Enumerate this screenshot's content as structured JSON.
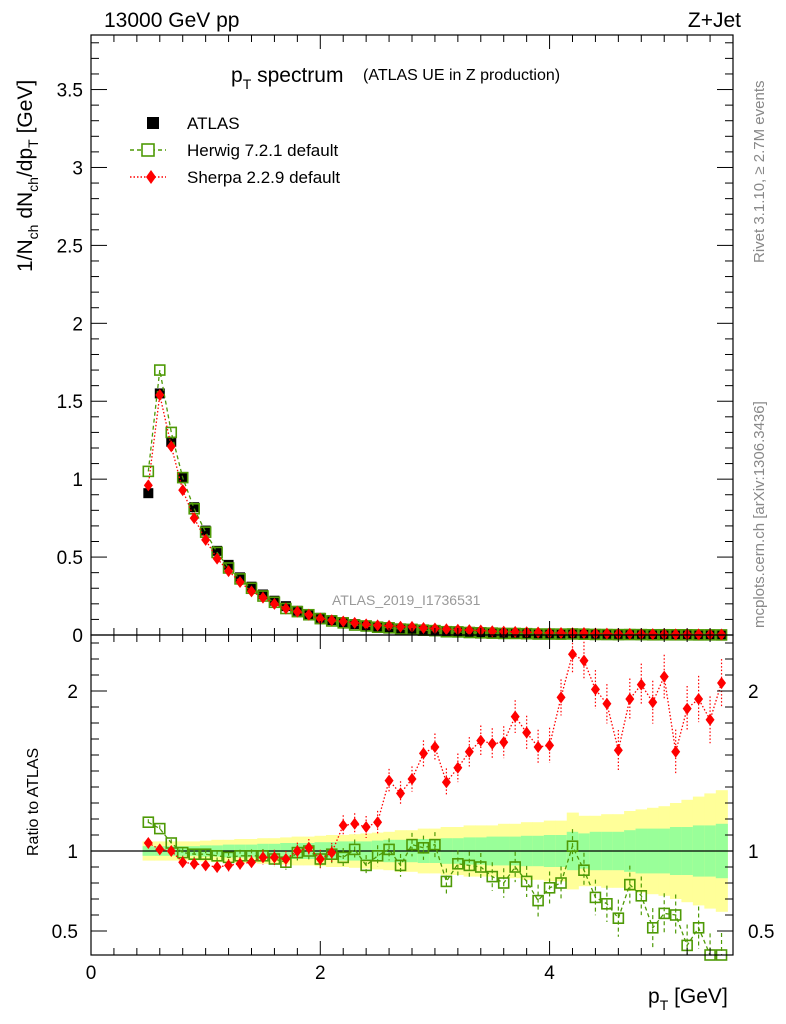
{
  "header": {
    "left": "13000 GeV pp",
    "right": "Z+Jet"
  },
  "title": {
    "main": "p",
    "main_sub": "T",
    "main_rest": " spectrum",
    "paren": "(ATLAS UE in Z production)"
  },
  "side_labels": {
    "rivet": "Rivet 3.1.10, ≥ 2.7M events",
    "mcplots": "mcplots.cern.ch [arXiv:1306.3436]"
  },
  "watermark": "ATLAS_2019_I1736531",
  "axes": {
    "ylabel_upper": "1/N_ch dN_ch/dp_T [GeV]",
    "ylabel_lower": "Ratio to ATLAS",
    "xlabel": "p_T [GeV]"
  },
  "legend": [
    {
      "label": "ATLAS",
      "color": "#000000",
      "marker": "filled-square"
    },
    {
      "label": "Herwig 7.2.1 default",
      "color": "#4e9a06",
      "marker": "open-square",
      "line": "dashed"
    },
    {
      "label": "Sherpa 2.2.9 default",
      "color": "#ff0000",
      "marker": "filled-diamond",
      "line": "dotted"
    }
  ],
  "colors": {
    "atlas": "#000000",
    "herwig": "#4e9a06",
    "sherpa": "#ff0000",
    "band_inner": "#99ff99",
    "band_outer": "#ffff99"
  },
  "chart_data": [
    {
      "type": "scatter",
      "panel": "main",
      "xlim": [
        0,
        5.6
      ],
      "ylim": [
        0,
        3.85
      ],
      "xticks": [
        0,
        2,
        4
      ],
      "yticks": [
        0,
        0.5,
        1,
        1.5,
        2,
        2.5,
        3,
        3.5
      ],
      "ytick_labels": [
        "0",
        "0.5",
        "1",
        "1.5",
        "2",
        "2.5",
        "3",
        "3.5"
      ],
      "x": [
        0.5,
        0.6,
        0.7,
        0.8,
        0.9,
        1.0,
        1.1,
        1.2,
        1.3,
        1.4,
        1.5,
        1.6,
        1.7,
        1.8,
        1.9,
        2.0,
        2.1,
        2.2,
        2.3,
        2.4,
        2.5,
        2.6,
        2.7,
        2.8,
        2.9,
        3.0,
        3.1,
        3.2,
        3.3,
        3.4,
        3.5,
        3.6,
        3.7,
        3.8,
        3.9,
        4.0,
        4.1,
        4.2,
        4.3,
        4.4,
        4.5,
        4.6,
        4.7,
        4.8,
        4.9,
        5.0,
        5.1,
        5.2,
        5.3,
        5.4,
        5.5
      ],
      "series": [
        {
          "name": "ATLAS",
          "values": [
            0.91,
            1.55,
            1.24,
            1.01,
            0.82,
            0.67,
            0.54,
            0.45,
            0.37,
            0.31,
            0.26,
            0.22,
            0.185,
            0.155,
            0.13,
            0.11,
            0.095,
            0.082,
            0.07,
            0.06,
            0.052,
            0.045,
            0.04,
            0.035,
            0.03,
            0.027,
            0.024,
            0.021,
            0.018,
            0.016,
            0.014,
            0.013,
            0.011,
            0.01,
            0.009,
            0.008,
            0.007,
            0.0065,
            0.006,
            0.0052,
            0.0046,
            0.0041,
            0.0037,
            0.0033,
            0.0029,
            0.0026,
            0.0023,
            0.0021,
            0.0019,
            0.0017,
            0.0015
          ]
        },
        {
          "name": "Herwig 7.2.1 default",
          "values": [
            1.05,
            1.7,
            1.3,
            1.01,
            0.81,
            0.66,
            0.53,
            0.43,
            0.36,
            0.3,
            0.25,
            0.21,
            0.17,
            0.15,
            0.13,
            0.105,
            0.09,
            0.078,
            0.064,
            0.058,
            0.05,
            0.046,
            0.038,
            0.036,
            0.031,
            0.028,
            0.021,
            0.02,
            0.016,
            0.014,
            0.012,
            0.01,
            0.0098,
            0.0083,
            0.0062,
            0.0062,
            0.0056,
            0.0067,
            0.0053,
            0.0036,
            0.0031,
            0.0024,
            0.0029,
            0.0024,
            0.0015,
            0.0016,
            0.0014,
            0.0013,
            0.0008,
            0.0009,
            0.0005
          ]
        },
        {
          "name": "Sherpa 2.2.9 default",
          "values": [
            0.96,
            1.54,
            1.21,
            0.93,
            0.75,
            0.61,
            0.49,
            0.41,
            0.34,
            0.28,
            0.24,
            0.2,
            0.17,
            0.15,
            0.13,
            0.105,
            0.095,
            0.087,
            0.078,
            0.068,
            0.062,
            0.059,
            0.053,
            0.052,
            0.045,
            0.042,
            0.037,
            0.034,
            0.031,
            0.029,
            0.024,
            0.022,
            0.02,
            0.018,
            0.016,
            0.014,
            0.013,
            0.012,
            0.013,
            0.01,
            0.0088,
            0.0071,
            0.0076,
            0.0064,
            0.0057,
            0.0052,
            0.0039,
            0.0039,
            0.0037,
            0.0032,
            0.0031
          ]
        }
      ]
    },
    {
      "type": "scatter",
      "panel": "ratio",
      "xlim": [
        0,
        5.6
      ],
      "ylim": [
        0.35,
        2.35
      ],
      "xticks": [
        0,
        2,
        4
      ],
      "xtick_labels": [
        "0",
        "2",
        "4"
      ],
      "yticks": [
        0.5,
        1,
        2
      ],
      "ytick_labels": [
        "0.5",
        "1",
        "2"
      ],
      "x": [
        0.5,
        0.6,
        0.7,
        0.8,
        0.9,
        1.0,
        1.1,
        1.2,
        1.3,
        1.4,
        1.5,
        1.6,
        1.7,
        1.8,
        1.9,
        2.0,
        2.1,
        2.2,
        2.3,
        2.4,
        2.5,
        2.6,
        2.7,
        2.8,
        2.9,
        3.0,
        3.1,
        3.2,
        3.3,
        3.4,
        3.5,
        3.6,
        3.7,
        3.8,
        3.9,
        4.0,
        4.1,
        4.2,
        4.3,
        4.4,
        4.5,
        4.6,
        4.7,
        4.8,
        4.9,
        5.0,
        5.1,
        5.2,
        5.3,
        5.4,
        5.5
      ],
      "band_inner_halfwidth": [
        0.03,
        0.03,
        0.03,
        0.03,
        0.03,
        0.035,
        0.035,
        0.04,
        0.04,
        0.04,
        0.045,
        0.045,
        0.05,
        0.05,
        0.05,
        0.055,
        0.055,
        0.06,
        0.06,
        0.06,
        0.065,
        0.07,
        0.07,
        0.07,
        0.075,
        0.075,
        0.08,
        0.08,
        0.085,
        0.085,
        0.09,
        0.09,
        0.09,
        0.095,
        0.095,
        0.1,
        0.1,
        0.12,
        0.11,
        0.12,
        0.12,
        0.12,
        0.13,
        0.14,
        0.14,
        0.14,
        0.15,
        0.15,
        0.16,
        0.16,
        0.17
      ],
      "band_outer_halfwidth": [
        0.06,
        0.06,
        0.06,
        0.06,
        0.06,
        0.065,
        0.07,
        0.07,
        0.075,
        0.075,
        0.08,
        0.08,
        0.085,
        0.09,
        0.09,
        0.095,
        0.1,
        0.1,
        0.105,
        0.11,
        0.115,
        0.12,
        0.13,
        0.13,
        0.14,
        0.14,
        0.15,
        0.15,
        0.16,
        0.16,
        0.16,
        0.17,
        0.17,
        0.18,
        0.18,
        0.19,
        0.19,
        0.24,
        0.22,
        0.22,
        0.23,
        0.23,
        0.25,
        0.26,
        0.27,
        0.28,
        0.3,
        0.32,
        0.34,
        0.36,
        0.38
      ],
      "series": [
        {
          "name": "Herwig 7.2.1 default",
          "values": [
            1.18,
            1.14,
            1.05,
            0.99,
            0.98,
            0.98,
            0.97,
            0.96,
            0.97,
            0.97,
            0.97,
            0.95,
            0.93,
            0.99,
            1.0,
            0.95,
            0.98,
            0.96,
            1.01,
            0.91,
            0.97,
            1.01,
            0.91,
            1.04,
            1.02,
            1.04,
            0.81,
            0.92,
            0.91,
            0.9,
            0.84,
            0.8,
            0.9,
            0.81,
            0.69,
            0.77,
            0.8,
            1.03,
            0.88,
            0.71,
            0.67,
            0.58,
            0.79,
            0.72,
            0.52,
            0.61,
            0.6,
            0.41,
            0.52,
            0.35,
            0.35
          ]
        },
        {
          "name": "Sherpa 2.2.9 default",
          "values": [
            1.05,
            1.01,
            1.0,
            0.93,
            0.92,
            0.91,
            0.9,
            0.91,
            0.92,
            0.93,
            0.96,
            0.96,
            0.95,
            1.0,
            1.02,
            0.95,
            0.99,
            1.16,
            1.17,
            1.15,
            1.18,
            1.44,
            1.36,
            1.45,
            1.61,
            1.65,
            1.43,
            1.52,
            1.62,
            1.69,
            1.67,
            1.68,
            1.84,
            1.74,
            1.65,
            1.66,
            1.96,
            2.23,
            2.19,
            2.01,
            1.92,
            1.63,
            1.95,
            2.04,
            1.93,
            2.09,
            1.62,
            1.89,
            1.95,
            1.82,
            2.05
          ]
        }
      ]
    }
  ]
}
